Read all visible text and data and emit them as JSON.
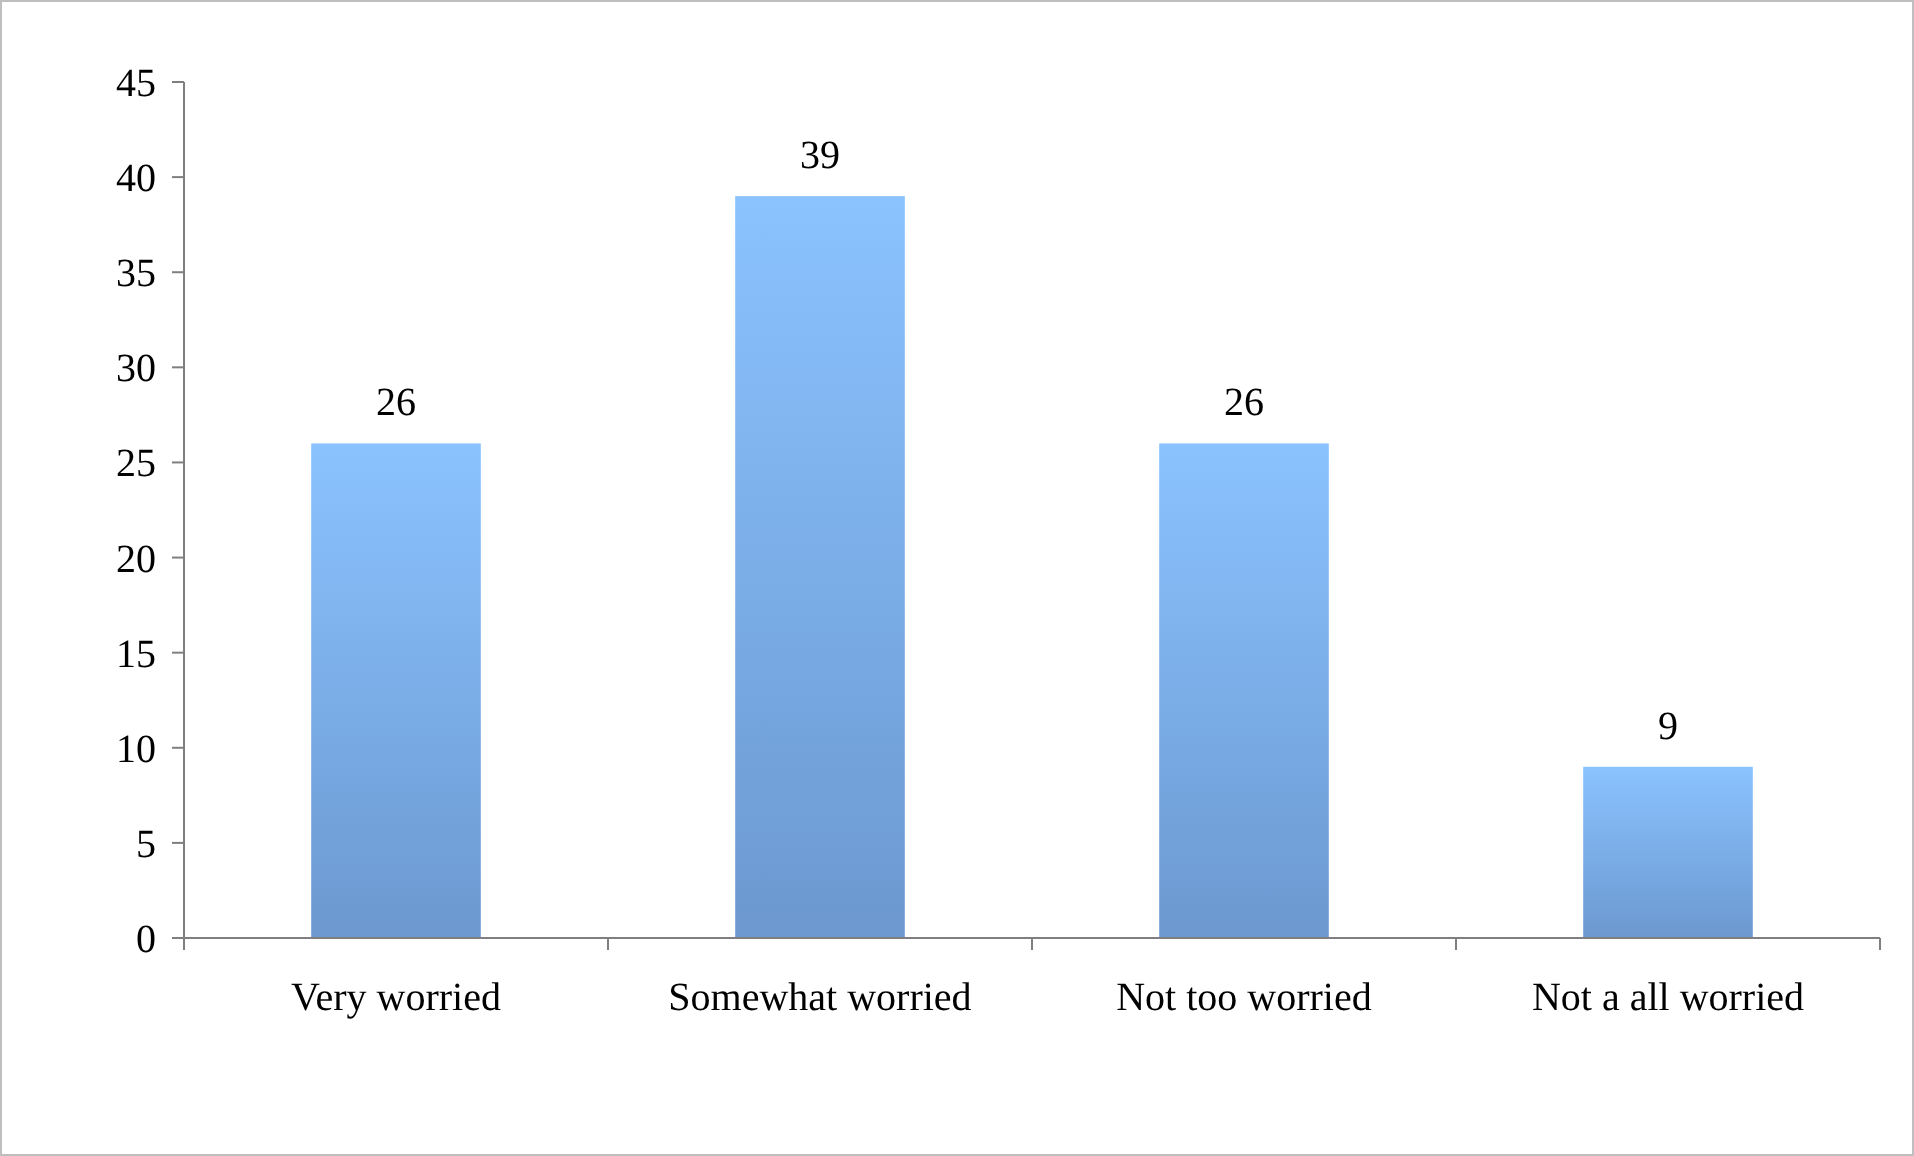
{
  "chart_data": {
    "type": "bar",
    "categories": [
      "Very worried",
      "Somewhat worried",
      "Not too worried",
      "Not a all worried"
    ],
    "values": [
      26,
      39,
      26,
      9
    ],
    "color": "#7aacea",
    "ylim": [
      0,
      45
    ],
    "yticks": [
      0,
      5,
      10,
      15,
      20,
      25,
      30,
      35,
      40,
      45
    ],
    "data_labels": true,
    "grid": false
  }
}
